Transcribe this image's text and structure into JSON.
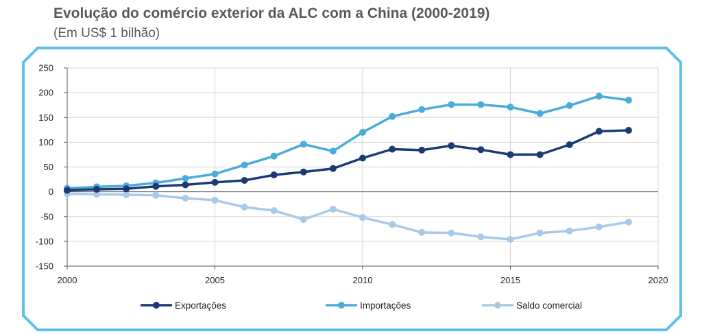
{
  "header": {
    "title": "Evolução do comércio exterior da ALC com a China (2000-2019)",
    "subtitle": "(Em US$ 1 bilhão)"
  },
  "chart_data": {
    "type": "line",
    "title": "Evolução do comércio exterior da ALC com a China (2000-2019)",
    "subtitle": "(Em US$ 1 bilhão)",
    "xlabel": "",
    "ylabel": "",
    "x": [
      2000,
      2001,
      2002,
      2003,
      2004,
      2005,
      2006,
      2007,
      2008,
      2009,
      2010,
      2011,
      2012,
      2013,
      2014,
      2015,
      2016,
      2017,
      2018,
      2019
    ],
    "xlim": [
      2000,
      2020
    ],
    "ylim": [
      -150,
      250
    ],
    "x_ticks": [
      2000,
      2005,
      2010,
      2015,
      2020
    ],
    "y_ticks": [
      250,
      200,
      150,
      100,
      50,
      0,
      -50,
      -100,
      -150
    ],
    "grid": true,
    "legend_position": "bottom",
    "series": [
      {
        "name": "Exportações",
        "color": "#1b3a73",
        "values": [
          3,
          5,
          6,
          11,
          14,
          19,
          23,
          34,
          40,
          47,
          68,
          86,
          84,
          93,
          85,
          75,
          75,
          95,
          122,
          124
        ]
      },
      {
        "name": "Importações",
        "color": "#4bacd9",
        "values": [
          7,
          10,
          12,
          18,
          27,
          36,
          54,
          72,
          96,
          82,
          120,
          152,
          166,
          176,
          176,
          171,
          158,
          174,
          193,
          185
        ]
      },
      {
        "name": "Saldo comercial",
        "color": "#a9c9e8",
        "values": [
          -4,
          -5,
          -6,
          -7,
          -13,
          -17,
          -31,
          -38,
          -56,
          -35,
          -52,
          -66,
          -82,
          -83,
          -91,
          -96,
          -83,
          -79,
          -71,
          -61
        ]
      }
    ]
  }
}
